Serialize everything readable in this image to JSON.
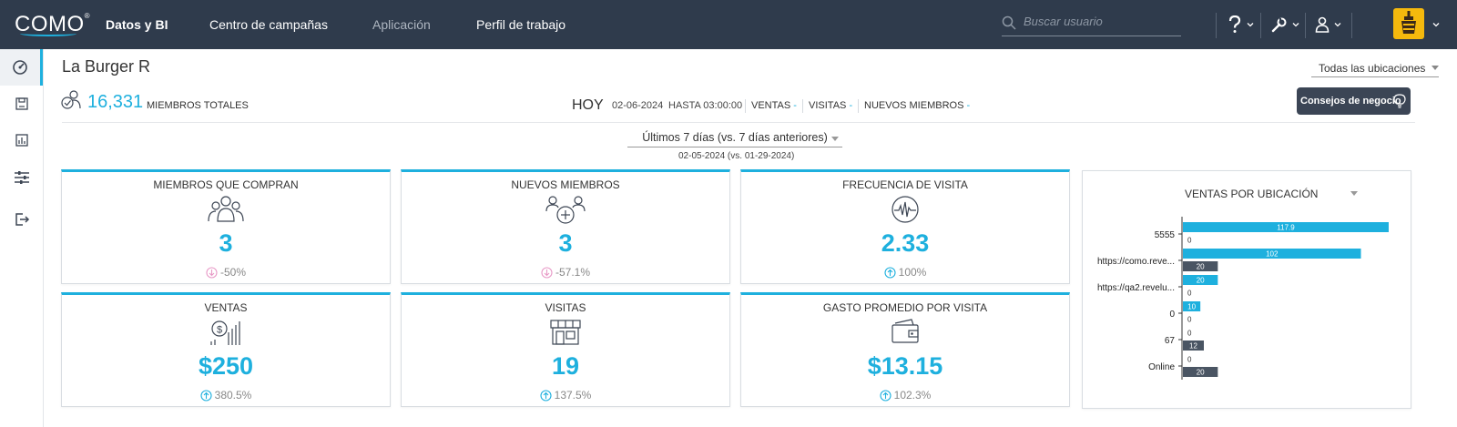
{
  "header": {
    "logo": "COMO",
    "nav": [
      {
        "label": "Datos y BI",
        "state": "active"
      },
      {
        "label": "Centro de campañas",
        "state": "normal"
      },
      {
        "label": "Aplicación",
        "state": "muted"
      },
      {
        "label": "Perfil de trabajo",
        "state": "normal"
      }
    ],
    "search_placeholder": "Buscar usuario",
    "icons": [
      "help-icon",
      "tools-icon",
      "user-icon",
      "brand-logo"
    ]
  },
  "sidebar": {
    "items": [
      "dashboard-icon",
      "save-report-icon",
      "report-chart-icon",
      "filters-icon",
      "logout-icon"
    ]
  },
  "main": {
    "business_name": "La Burger R",
    "location_filter": "Todas las ubicaciones",
    "total_members": "16,331",
    "total_members_label": "MIEMBROS TOTALES",
    "today": {
      "label": "HOY",
      "date": "02-06-2024",
      "until": "HASTA 03:00:00",
      "metrics": [
        {
          "label": "VENTAS",
          "value": "-"
        },
        {
          "label": "VISITAS",
          "value": "-"
        },
        {
          "label": "NUEVOS MIEMBROS",
          "value": "-"
        }
      ]
    },
    "tips_button": "Consejos de negocio",
    "period": "Últimos 7 días (vs. 7 días anteriores)",
    "compare_range": "02-05-2024 (vs. 01-29-2024)"
  },
  "kpis": [
    {
      "title": "MIEMBROS QUE COMPRAN",
      "icon": "members-group-icon",
      "value": "3",
      "change": "-50%",
      "trend": "down"
    },
    {
      "title": "NUEVOS MIEMBROS",
      "icon": "new-members-icon",
      "value": "3",
      "change": "-57.1%",
      "trend": "down"
    },
    {
      "title": "FRECUENCIA DE VISITA",
      "icon": "pulse-icon",
      "value": "2.33",
      "change": "100%",
      "trend": "up"
    },
    {
      "title": "VENTAS",
      "icon": "sales-icon",
      "value": "$250",
      "change": "380.5%",
      "trend": "up"
    },
    {
      "title": "VISITAS",
      "icon": "store-icon",
      "value": "19",
      "change": "137.5%",
      "trend": "up"
    },
    {
      "title": "GASTO PROMEDIO POR VISITA",
      "icon": "wallet-icon",
      "value": "$13.15",
      "change": "102.3%",
      "trend": "up"
    }
  ],
  "colors": {
    "accent": "#1eb0de",
    "topbar": "#2f3b4c",
    "down": "#e89ac7",
    "up": "#1eb0de",
    "previous": "#4a5563"
  },
  "chart_title": "VENTAS POR UBICACIÓN",
  "chart_data": {
    "type": "bar",
    "orientation": "horizontal",
    "title": "VENTAS POR UBICACIÓN",
    "categories": [
      "5555",
      "https://como.reve...",
      "https://qa2.revelu...",
      "0",
      "67",
      "Online"
    ],
    "series": [
      {
        "values": [
          117.9,
          102,
          20,
          10,
          0,
          0
        ]
      },
      {
        "values": [
          0,
          20,
          0,
          0,
          12,
          20
        ]
      }
    ],
    "xlim": [
      0,
      120
    ],
    "grid": false
  }
}
